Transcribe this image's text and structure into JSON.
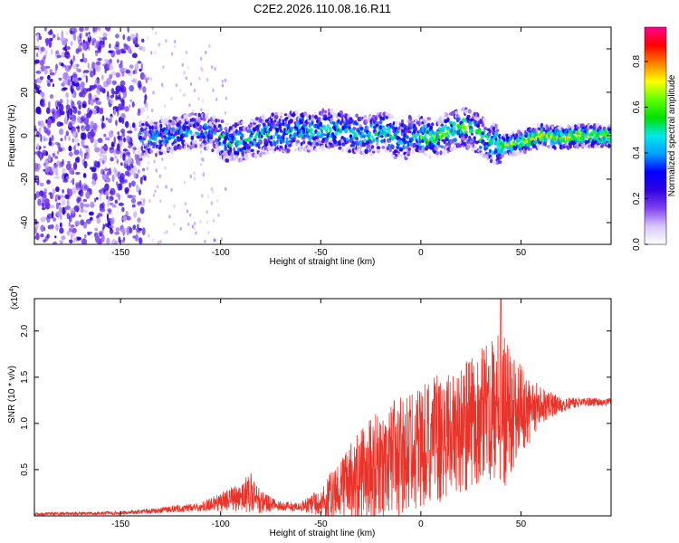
{
  "title": "C2E2.2026.110.08.16.R11",
  "chart_data": [
    {
      "type": "heatmap",
      "name": "spectrogram",
      "xlabel": "Height of straight line (km)",
      "ylabel": "Frequency (Hz)",
      "xlim": [
        -193,
        95
      ],
      "ylim": [
        -50,
        50
      ],
      "xticks": [
        -150,
        -100,
        -50,
        0,
        50
      ],
      "yticks": [
        -40,
        -20,
        0,
        20,
        40
      ],
      "xtick_labels": [
        "-150",
        "-100",
        "-50",
        "0",
        "50"
      ],
      "ytick_labels": [
        "-40",
        "-20",
        "0",
        "20",
        "40"
      ],
      "colorbar": {
        "label": "Normalized spectral amplitude",
        "range": [
          0,
          0.95
        ],
        "ticks": [
          0.0,
          0.2,
          0.4,
          0.6,
          0.8
        ],
        "tick_labels": [
          "0.0",
          "0.2",
          "0.4",
          "0.6",
          "0.8"
        ],
        "colormap": [
          "#ffffff",
          "#d8c8f8",
          "#8040f0",
          "#3000e0",
          "#0000ff",
          "#00a0ff",
          "#00e8e8",
          "#00e000",
          "#60ff00",
          "#ffff00",
          "#ff8000",
          "#ff0000",
          "#ff0090"
        ]
      },
      "noise_region_km": [
        -193,
        -137
      ],
      "ridge": {
        "x": [
          -140,
          -125,
          -110,
          -102,
          -95,
          -85,
          -75,
          -65,
          -55,
          -45,
          -35,
          -25,
          -18,
          -10,
          -5,
          0,
          5,
          10,
          15,
          20,
          25,
          30,
          35,
          40,
          50,
          60,
          70,
          80,
          95
        ],
        "y": [
          -2,
          0,
          3,
          0,
          -4,
          -1,
          1,
          2,
          2,
          3,
          1,
          0,
          2,
          -3,
          0,
          0,
          -1,
          0,
          2,
          4,
          3,
          0,
          -3,
          -5,
          -3,
          0,
          -1,
          0,
          0
        ]
      }
    },
    {
      "type": "line",
      "name": "snr",
      "xlabel": "Height of straight line (km)",
      "ylabel": "SNR (10 * v/v)",
      "multiplier_label": "(x10",
      "multiplier_exp": "4",
      "multiplier_close": ")",
      "xlim": [
        -193,
        95
      ],
      "ylim": [
        0,
        23500
      ],
      "xticks": [
        -150,
        -100,
        -50,
        0,
        50
      ],
      "yticks": [
        5000,
        10000,
        15000,
        20000
      ],
      "xtick_labels": [
        "-150",
        "-100",
        "-50",
        "0",
        "50"
      ],
      "ytick_labels": [
        "0.5",
        "1.0",
        "1.5",
        "2.0"
      ],
      "color": "#e8332a",
      "envelope": {
        "x": [
          -193,
          -150,
          -130,
          -110,
          -100,
          -90,
          -85,
          -80,
          -70,
          -60,
          -50,
          -40,
          -30,
          -20,
          -10,
          0,
          10,
          20,
          30,
          35,
          40,
          45,
          50,
          55,
          60,
          70,
          80,
          95
        ],
        "base": [
          200,
          300,
          600,
          1000,
          1500,
          2000,
          2500,
          1500,
          1000,
          1000,
          1500,
          3000,
          4500,
          5500,
          6500,
          7500,
          8500,
          9500,
          10500,
          11000,
          11000,
          11500,
          11500,
          11500,
          12000,
          12000,
          12300,
          12300
        ],
        "amp": [
          150,
          200,
          300,
          500,
          1000,
          1600,
          2200,
          1200,
          500,
          500,
          1500,
          3500,
          5000,
          6000,
          6500,
          6500,
          7000,
          7000,
          7500,
          8000,
          9000,
          7000,
          5000,
          3500,
          2000,
          800,
          500,
          400
        ]
      },
      "peak": {
        "x": 40,
        "y": 23500
      }
    }
  ]
}
